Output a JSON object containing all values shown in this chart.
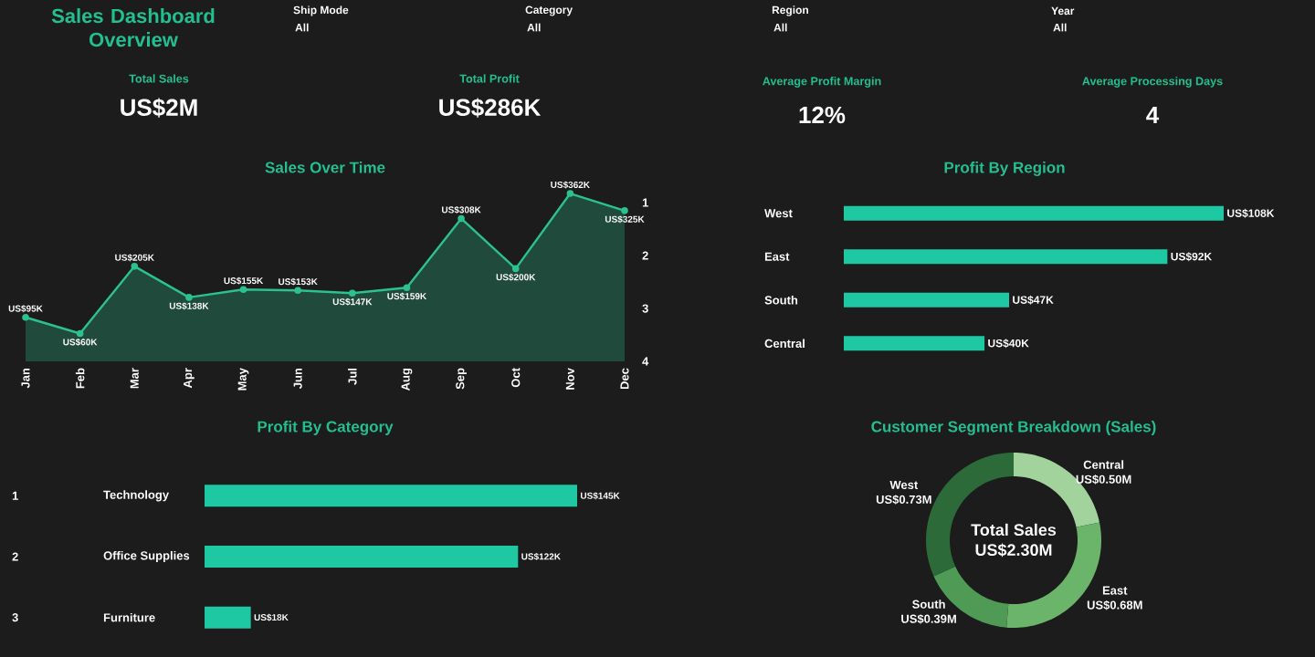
{
  "chart_data": [
    {
      "type": "other",
      "title": "Sales Dashboard Overview",
      "annotations": [
        "Ship Mode",
        "All",
        "Category",
        "All",
        "Region",
        "All",
        "Year",
        "All",
        "Total Sales",
        "US$2M",
        "Total Profit",
        "US$286K",
        "Average Profit Margin",
        "12%",
        "Average Processing Days",
        "4"
      ]
    },
    {
      "type": "area",
      "title": "Sales Over Time",
      "categories": [
        "Jan",
        "Feb",
        "Mar",
        "Apr",
        "May",
        "Jun",
        "Jul",
        "Aug",
        "Sep",
        "Oct",
        "Nov",
        "Dec"
      ],
      "values": [
        95000,
        60000,
        205000,
        138000,
        155000,
        153000,
        147000,
        159000,
        308000,
        200000,
        362000,
        325000
      ],
      "value_labels": [
        "US$95K",
        "US$60K",
        "US$205K",
        "US$138K",
        "US$155K",
        "US$153K",
        "US$147K",
        "US$159K",
        "US$308K",
        "US$200K",
        "US$362K",
        "US$325K"
      ],
      "color": "#2cc190",
      "marker": "circle",
      "y2lim": [
        4,
        1
      ],
      "y2ticks": [
        1,
        2,
        3,
        4
      ]
    },
    {
      "type": "bar",
      "orientation": "horizontal",
      "title": "Profit By Region",
      "categories": [
        "West",
        "East",
        "South",
        "Central"
      ],
      "values": [
        108000,
        92000,
        47000,
        40000
      ],
      "value_labels": [
        "US$108K",
        "US$92K",
        "US$47K",
        "US$40K"
      ],
      "color": "#1ec8a2",
      "tick_labels": "y"
    },
    {
      "type": "bar",
      "orientation": "horizontal",
      "title": "Profit By Category",
      "categories": [
        "Technology",
        "Office Supplies",
        "Furniture"
      ],
      "values": [
        145000,
        122000,
        18000
      ],
      "value_labels": [
        "US$145K",
        "US$122K",
        "US$18K"
      ],
      "color": "#1ec8a2",
      "tick_labels": "y",
      "annotations": [
        "1",
        "2",
        "3"
      ]
    },
    {
      "type": "donut",
      "title": "Customer Segment Breakdown (Sales)",
      "categories": [
        "Central",
        "East",
        "South",
        "West"
      ],
      "values": [
        500000,
        680000,
        390000,
        730000
      ],
      "value_labels": [
        "US$0.50M",
        "US$0.68M",
        "US$0.39M",
        "US$0.73M"
      ],
      "colors": [
        "#a3d39c",
        "#6bb56b",
        "#4f9a55",
        "#2d6a39"
      ],
      "annotations": [
        "Total Sales",
        "US$2.30M"
      ]
    }
  ]
}
